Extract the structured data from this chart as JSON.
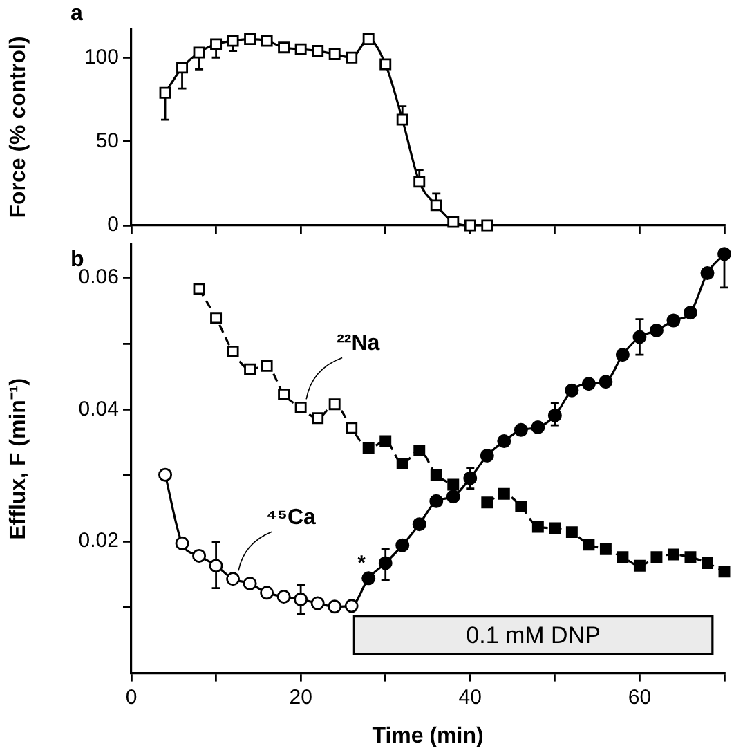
{
  "chart_data": [
    {
      "type": "line",
      "title": "a",
      "ylabel": "Force (% control)",
      "marker": "square",
      "line_style": "solid",
      "grid": false,
      "legend": false,
      "tick_labels": "y",
      "xlim": [
        0,
        70
      ],
      "xticks": [
        {
          "value": 0,
          "label": null
        },
        {
          "value": 10,
          "label": null
        },
        {
          "value": 20,
          "label": null
        },
        {
          "value": 30,
          "label": null
        },
        {
          "value": 40,
          "label": null
        },
        {
          "value": 50,
          "label": null
        },
        {
          "value": 60,
          "label": null
        },
        {
          "value": 70,
          "label": null
        }
      ],
      "ylim": [
        0,
        117
      ],
      "yticks": [
        0,
        50,
        100
      ],
      "series": [
        {
          "color": "#000000",
          "x": [
            4,
            6,
            8,
            10,
            12,
            14,
            16,
            18,
            20,
            22,
            24,
            26,
            28,
            30,
            32,
            34,
            36,
            38,
            40,
            42
          ],
          "values": [
            79,
            94,
            103,
            108,
            110,
            111,
            110,
            106,
            105,
            104,
            102,
            100,
            111,
            96,
            63,
            26,
            12,
            2,
            0,
            0
          ],
          "errors": [
            [
              63,
              79
            ],
            [
              81.5,
              94
            ],
            [
              93,
              103
            ],
            [
              100,
              108
            ],
            [
              104,
              110
            ],
            null,
            null,
            null,
            null,
            null,
            null,
            null,
            null,
            null,
            [
              63,
              71
            ],
            [
              26,
              33
            ],
            [
              12,
              19
            ],
            null,
            null,
            null
          ]
        }
      ]
    },
    {
      "type": "line",
      "title": "b",
      "xlabel": "Time (min)",
      "ylabel": "Efflux, F (min⁻¹)",
      "grid": false,
      "legend": false,
      "xlim": [
        0,
        70
      ],
      "xticks": [
        0,
        {
          "value": 10,
          "label": null
        },
        20,
        {
          "value": 30,
          "label": null
        },
        40,
        {
          "value": 50,
          "label": null
        },
        60,
        {
          "value": 70,
          "label": null
        }
      ],
      "ylim": [
        0,
        0.065
      ],
      "yticks": [
        {
          "value": 0.01,
          "label": null
        },
        0.02,
        {
          "value": 0.03,
          "label": null
        },
        0.04,
        {
          "value": 0.05,
          "label": null
        },
        0.06
      ],
      "series": [
        {
          "name": "²²Na",
          "color": "#000000",
          "marker": "square",
          "line_style": "dashed",
          "x": [
            8,
            10,
            12,
            14,
            16,
            18,
            20,
            22,
            24,
            26,
            28,
            30,
            32,
            34,
            36,
            38,
            40,
            42,
            44,
            46,
            48,
            50,
            52,
            54,
            56,
            58,
            60,
            62,
            64,
            66,
            68,
            70
          ],
          "values": [
            0.0583,
            0.0539,
            0.0488,
            0.0461,
            0.0466,
            0.0423,
            0.0403,
            0.0387,
            0.0408,
            0.0372,
            0.0341,
            0.0352,
            0.0318,
            0.0338,
            0.0301,
            0.0286,
            null,
            0.0259,
            0.0272,
            0.0253,
            0.0222,
            0.022,
            0.0214,
            0.0195,
            0.0188,
            0.0176,
            0.0163,
            0.0176,
            0.018,
            0.0176,
            0.0167,
            0.0154
          ],
          "colors": [
            "#ffffff",
            "#ffffff",
            "#ffffff",
            "#ffffff",
            "#ffffff",
            "#ffffff",
            "#ffffff",
            "#ffffff",
            "#ffffff",
            "#ffffff",
            "#000000",
            "#000000",
            "#000000",
            "#000000",
            "#000000",
            "#000000",
            "#000000",
            "#000000",
            "#000000",
            "#000000",
            "#000000",
            "#000000",
            "#000000",
            "#000000",
            "#000000",
            "#000000",
            "#000000",
            "#000000",
            "#000000",
            "#000000",
            "#000000",
            "#000000"
          ]
        },
        {
          "name": "⁴⁵Ca",
          "color": "#000000",
          "marker": "circle",
          "line_style": "solid",
          "x": [
            4,
            6,
            8,
            10,
            12,
            14,
            16,
            18,
            20,
            22,
            24,
            26,
            28,
            30,
            32,
            34,
            36,
            38,
            40,
            42,
            44,
            46,
            48,
            50,
            52,
            54,
            56,
            58,
            60,
            62,
            64,
            66,
            68,
            70
          ],
          "values": [
            0.0301,
            0.0197,
            0.0178,
            0.0163,
            0.0143,
            0.0136,
            0.0122,
            0.0116,
            0.0112,
            0.0106,
            0.0101,
            0.0102,
            0.0144,
            0.0167,
            0.0194,
            0.0226,
            0.0261,
            0.0268,
            0.0296,
            0.033,
            0.0352,
            0.0369,
            0.0373,
            0.0391,
            0.0429,
            0.0439,
            0.0442,
            0.0483,
            0.051,
            0.052,
            0.0535,
            0.0547,
            0.0607,
            0.0636
          ],
          "errors": [
            null,
            null,
            null,
            [
              0.0129,
              0.0199
            ],
            null,
            null,
            null,
            null,
            [
              0.009,
              0.0134
            ],
            null,
            null,
            null,
            null,
            [
              0.0141,
              0.0188
            ],
            null,
            null,
            null,
            null,
            [
              0.028,
              0.0311
            ],
            null,
            null,
            null,
            null,
            [
              0.0376,
              0.041
            ],
            null,
            null,
            null,
            null,
            [
              0.0483,
              0.0537
            ],
            null,
            null,
            null,
            null,
            [
              0.0585,
              0.0636
            ]
          ],
          "colors": [
            "#ffffff",
            "#ffffff",
            "#ffffff",
            "#ffffff",
            "#ffffff",
            "#ffffff",
            "#ffffff",
            "#ffffff",
            "#ffffff",
            "#ffffff",
            "#ffffff",
            "#ffffff",
            "#000000",
            "#000000",
            "#000000",
            "#000000",
            "#000000",
            "#000000",
            "#000000",
            "#000000",
            "#000000",
            "#000000",
            "#000000",
            "#000000",
            "#000000",
            "#000000",
            "#000000",
            "#000000",
            "#000000",
            "#000000",
            "#000000",
            "#000000",
            "#000000",
            "#000000"
          ]
        }
      ],
      "annotations": [
        {
          "text": "*",
          "x": 28,
          "y": 0.0144
        }
      ],
      "bands": [
        {
          "axis": "x",
          "from": 26.3,
          "to": 68.6,
          "label": "0.1 mM DNP",
          "color": "#ebebeb"
        }
      ]
    }
  ]
}
